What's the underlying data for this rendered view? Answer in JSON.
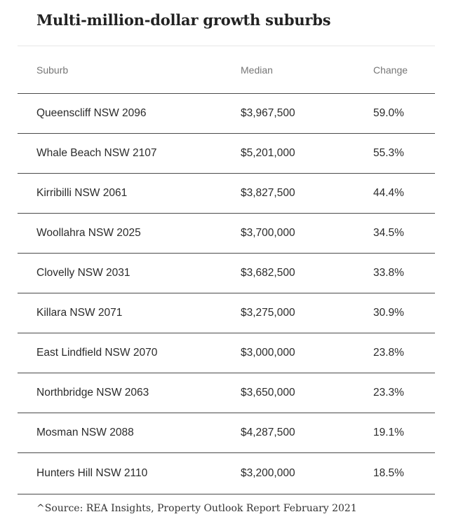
{
  "title": "Multi-million-dollar growth suburbs",
  "table": {
    "headers": {
      "suburb": "Suburb",
      "median": "Median",
      "change": "Change"
    },
    "rows": [
      {
        "suburb": "Queenscliff NSW 2096",
        "median": "$3,967,500",
        "change": "59.0%"
      },
      {
        "suburb": "Whale Beach NSW 2107",
        "median": "$5,201,000",
        "change": "55.3%"
      },
      {
        "suburb": "Kirribilli NSW 2061",
        "median": "$3,827,500",
        "change": "44.4%"
      },
      {
        "suburb": "Woollahra NSW 2025",
        "median": "$3,700,000",
        "change": "34.5%"
      },
      {
        "suburb": "Clovelly NSW 2031",
        "median": "$3,682,500",
        "change": "33.8%"
      },
      {
        "suburb": "Killara NSW 2071",
        "median": "$3,275,000",
        "change": "30.9%"
      },
      {
        "suburb": "East Lindfield NSW 2070",
        "median": "$3,000,000",
        "change": "23.8%"
      },
      {
        "suburb": "Northbridge NSW 2063",
        "median": "$3,650,000",
        "change": "23.3%"
      },
      {
        "suburb": "Mosman NSW 2088",
        "median": "$4,287,500",
        "change": "19.1%"
      },
      {
        "suburb": "Hunters Hill NSW 2110",
        "median": "$3,200,000",
        "change": "18.5%"
      }
    ]
  },
  "source": "^Source: REA Insights, Property Outlook Report February 2021"
}
